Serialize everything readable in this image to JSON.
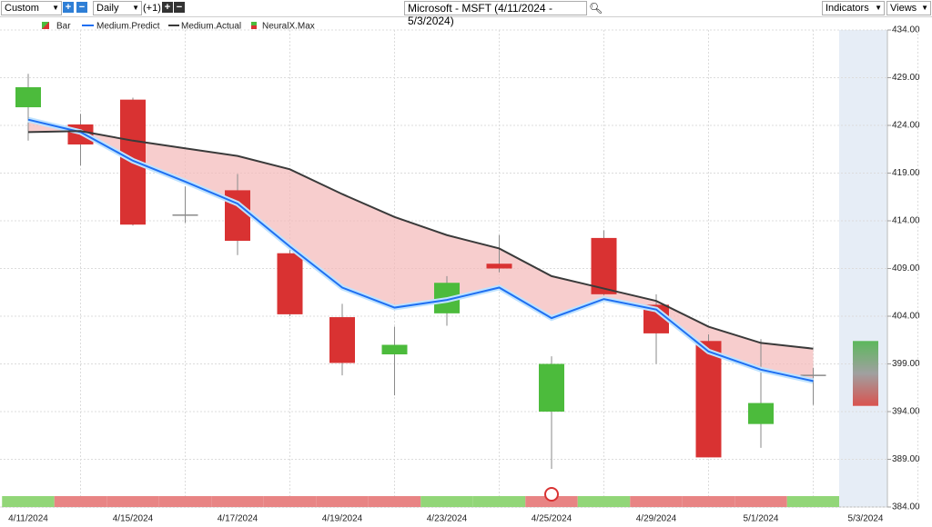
{
  "toolbar": {
    "period": "Custom",
    "interval": "Daily",
    "offset": "(+1)",
    "title": "Microsoft - MSFT (4/11/2024 - 5/3/2024)",
    "indicators": "Indicators",
    "views": "Views"
  },
  "chart_data": {
    "type": "candlestick",
    "categories": [
      "4/11/2024",
      null,
      "4/15/2024",
      null,
      "4/17/2024",
      null,
      "4/19/2024",
      null,
      "4/23/2024",
      null,
      "4/25/2024",
      null,
      "4/29/2024",
      null,
      "5/1/2024",
      null,
      "5/3/2024"
    ],
    "ylim": [
      384,
      434
    ],
    "yticks": [
      {
        "value": 384,
        "label": "384.00"
      },
      {
        "value": 389,
        "label": "389.00"
      },
      {
        "value": 394,
        "label": "394.00"
      },
      {
        "value": 399,
        "label": "399.00"
      },
      {
        "value": 404,
        "label": "404.00"
      },
      {
        "value": 409,
        "label": "409.00"
      },
      {
        "value": 414,
        "label": "414.00"
      },
      {
        "value": 419,
        "label": "419.00"
      },
      {
        "value": 424,
        "label": "424.00"
      },
      {
        "value": 429,
        "label": "429.00"
      },
      {
        "value": 434,
        "label": "434.00"
      }
    ],
    "grid": true,
    "series": [
      {
        "name": "Bar",
        "up_color": "#4cbb3c",
        "down_color": "#d93232",
        "open": [
          425.9,
          424.1,
          426.7,
          414.6,
          417.2,
          410.6,
          403.9,
          400.0,
          404.3,
          409.5,
          394.0,
          412.2,
          405.2,
          401.4,
          392.7,
          397.8,
          null
        ],
        "high": [
          429.4,
          425.2,
          426.9,
          417.6,
          418.9,
          411.4,
          405.3,
          402.9,
          408.2,
          412.5,
          399.8,
          413.0,
          406.3,
          402.1,
          401.6,
          398.6,
          null
        ],
        "low": [
          422.4,
          419.8,
          413.5,
          413.8,
          410.4,
          404.0,
          397.8,
          395.7,
          403.0,
          408.6,
          388.0,
          406.2,
          399.0,
          389.2,
          390.2,
          394.7,
          null
        ],
        "close": [
          428.0,
          422.0,
          413.6,
          414.6,
          411.9,
          404.2,
          399.1,
          401.0,
          407.5,
          409.0,
          399.0,
          406.3,
          402.2,
          389.2,
          394.9,
          397.8,
          null
        ]
      },
      {
        "name": "Medium.Predict",
        "color": "#1f6ff2",
        "values": [
          424.6,
          423.3,
          420.3,
          418.1,
          415.8,
          411.3,
          407.0,
          404.9,
          405.7,
          407.0,
          403.8,
          405.8,
          404.7,
          400.3,
          398.4,
          397.2,
          null
        ]
      },
      {
        "name": "Medium.Actual",
        "color": "#3a3a3a",
        "values": [
          423.3,
          423.4,
          422.4,
          421.6,
          420.8,
          419.4,
          416.8,
          414.4,
          412.5,
          411.1,
          408.2,
          406.9,
          405.6,
          402.9,
          401.2,
          400.6,
          null
        ]
      },
      {
        "name": "NeuralX.Max",
        "range": [
          394.6,
          401.4
        ],
        "signal_colors": [
          "#92d678",
          "#e88484",
          "#e88484",
          "#e88484",
          "#e88484",
          "#e88484",
          "#e88484",
          "#e88484",
          "#92d678",
          "#92d678",
          "#e88484",
          "#92d678",
          "#e88484",
          "#e88484",
          "#e88484",
          "#92d678"
        ]
      }
    ]
  }
}
